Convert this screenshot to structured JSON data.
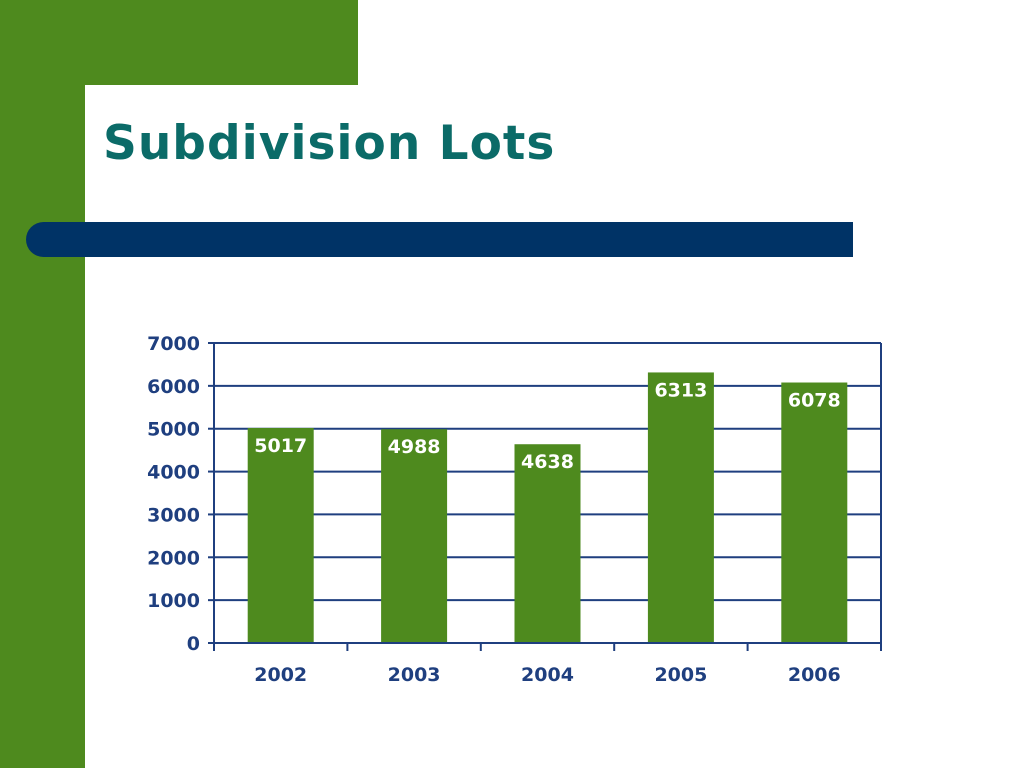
{
  "slide": {
    "title": "Subdivision Lots",
    "colors": {
      "green": "#4e8a1e",
      "navy": "#003366",
      "title": "#0b6b68",
      "axis": "#1f3f7f"
    }
  },
  "chart_data": {
    "type": "bar",
    "title": "",
    "xlabel": "",
    "ylabel": "",
    "categories": [
      "2002",
      "2003",
      "2004",
      "2005",
      "2006"
    ],
    "values": [
      5017,
      4988,
      4638,
      6313,
      6078
    ],
    "data_labels": [
      "5017",
      "4988",
      "4638",
      "6313",
      "6078"
    ],
    "ylim": [
      0,
      7000
    ],
    "yticks": [
      "0",
      "1000",
      "2000",
      "3000",
      "4000",
      "5000",
      "6000",
      "7000"
    ],
    "grid": true,
    "bar_color": "#4e8a1e",
    "label_color": "#ffffff"
  }
}
